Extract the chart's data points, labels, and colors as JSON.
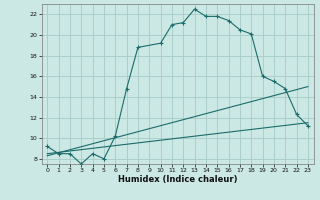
{
  "title": "",
  "xlabel": "Humidex (Indice chaleur)",
  "ylabel": "",
  "background_color": "#cce8e4",
  "grid_color": "#aacfcb",
  "line_color": "#1a6b6b",
  "xlim": [
    -0.5,
    23.5
  ],
  "ylim": [
    7.5,
    23.0
  ],
  "xticks": [
    0,
    1,
    2,
    3,
    4,
    5,
    6,
    7,
    8,
    9,
    10,
    11,
    12,
    13,
    14,
    15,
    16,
    17,
    18,
    19,
    20,
    21,
    22,
    23
  ],
  "yticks": [
    8,
    10,
    12,
    14,
    16,
    18,
    20,
    22
  ],
  "curve1_x": [
    0,
    1,
    2,
    3,
    4,
    5,
    6,
    7,
    8,
    10,
    11,
    12,
    13,
    14,
    15,
    16,
    17,
    18,
    19,
    20,
    21,
    22,
    23
  ],
  "curve1_y": [
    9.2,
    8.5,
    8.5,
    7.5,
    8.5,
    8.0,
    10.2,
    14.8,
    18.8,
    19.2,
    21.0,
    21.2,
    22.5,
    21.8,
    21.8,
    21.4,
    20.5,
    20.1,
    16.0,
    15.5,
    14.8,
    12.3,
    11.2
  ],
  "curve2_x": [
    0,
    23
  ],
  "curve2_y": [
    8.5,
    11.5
  ],
  "curve3_x": [
    0,
    23
  ],
  "curve3_y": [
    8.3,
    15.0
  ],
  "xlabel_fontsize": 6.0,
  "tick_fontsize": 4.5
}
